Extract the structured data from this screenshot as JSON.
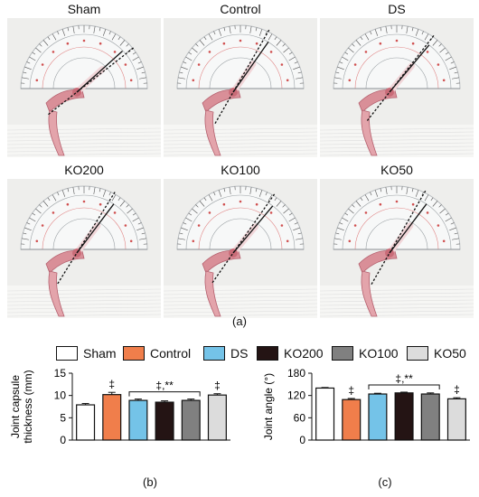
{
  "photo_panels": [
    {
      "title": "Sham",
      "ref_angle": 38,
      "meas_angle": 42
    },
    {
      "title": "Control",
      "ref_angle": 60,
      "meas_angle": 55
    },
    {
      "title": "DS",
      "ref_angle": 52,
      "meas_angle": 50
    },
    {
      "title": "KO200",
      "ref_angle": 58,
      "meas_angle": 53
    },
    {
      "title": "KO100",
      "ref_angle": 55,
      "meas_angle": 50
    },
    {
      "title": "KO50",
      "ref_angle": 60,
      "meas_angle": 53
    }
  ],
  "figure_labels": {
    "a": "(a)",
    "b": "(b)",
    "c": "(c)"
  },
  "legend": [
    {
      "name": "Sham",
      "color": "#ffffff"
    },
    {
      "name": "Control",
      "color": "#f07e4b"
    },
    {
      "name": "DS",
      "color": "#74c3e8"
    },
    {
      "name": "KO200",
      "color": "#241414"
    },
    {
      "name": "KO100",
      "color": "#808080"
    },
    {
      "name": "KO50",
      "color": "#dcdcdc"
    }
  ],
  "chart_data": [
    {
      "type": "bar",
      "categories": [
        "Sham",
        "Control",
        "DS",
        "KO200",
        "KO100",
        "KO50"
      ],
      "values": [
        7.9,
        10.2,
        8.9,
        8.5,
        8.9,
        10.1
      ],
      "errors": [
        0.3,
        0.5,
        0.3,
        0.3,
        0.3,
        0.3
      ],
      "ylabel": "Joint capsule\nthickness (mm)",
      "ylim": [
        0,
        15
      ],
      "yticks": [
        "0",
        "5",
        "10",
        "15"
      ],
      "annotations": [
        {
          "index": 1,
          "text": "‡"
        },
        {
          "index": 5,
          "text": "‡"
        },
        {
          "bracket": [
            2,
            4
          ],
          "text": "‡,**"
        }
      ]
    },
    {
      "type": "bar",
      "categories": [
        "Sham",
        "Control",
        "DS",
        "KO200",
        "KO100",
        "KO50"
      ],
      "values": [
        140,
        109,
        124,
        127,
        124,
        111
      ],
      "errors": [
        1.5,
        3,
        2,
        2,
        3,
        3
      ],
      "ylabel": "Joint angle (°)",
      "ylim": [
        0,
        180
      ],
      "yticks": [
        "0",
        "60",
        "120",
        "180"
      ],
      "annotations": [
        {
          "index": 1,
          "text": "‡"
        },
        {
          "index": 5,
          "text": "‡"
        },
        {
          "bracket": [
            2,
            4
          ],
          "text": "‡,**"
        }
      ]
    }
  ]
}
